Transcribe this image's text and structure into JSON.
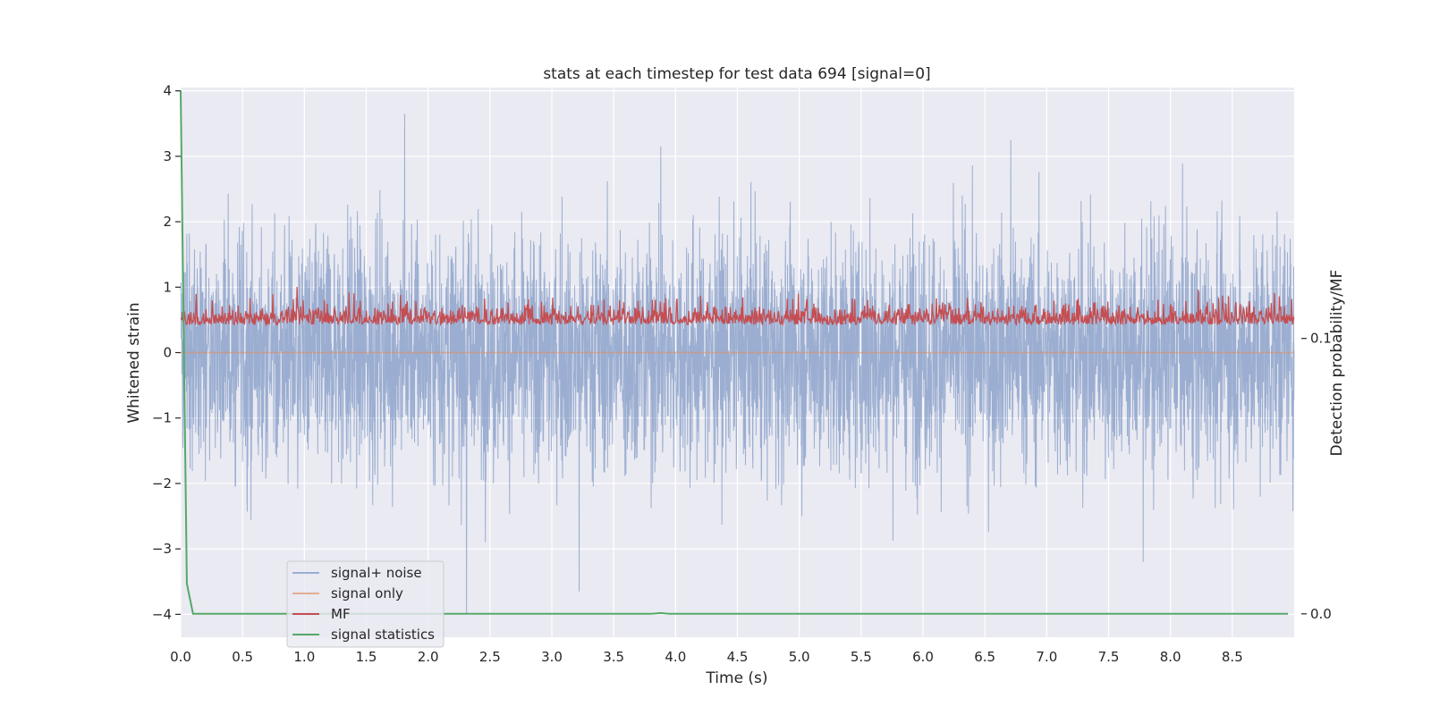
{
  "chart_data": {
    "type": "line",
    "title": "stats at each timestep for test data 694 [signal=0]",
    "xlabel": "Time (s)",
    "ylabel": "Whitened strain",
    "y2label": "Detection probability/MF",
    "xlim": [
      0,
      9.0
    ],
    "ylim": [
      -4.35,
      4.05
    ],
    "y2lim": [
      -0.0085,
      0.1911
    ],
    "x_ticks": [
      0.0,
      0.5,
      1.0,
      1.5,
      2.0,
      2.5,
      3.0,
      3.5,
      4.0,
      4.5,
      5.0,
      5.5,
      6.0,
      6.5,
      7.0,
      7.5,
      8.0,
      8.5
    ],
    "x_tick_labels": [
      "0.0",
      "0.5",
      "1.0",
      "1.5",
      "2.0",
      "2.5",
      "3.0",
      "3.5",
      "4.0",
      "4.5",
      "5.0",
      "5.5",
      "6.0",
      "6.5",
      "7.0",
      "7.5",
      "8.0",
      "8.5"
    ],
    "y_ticks": [
      4,
      3,
      2,
      1,
      0,
      -1,
      -2,
      -3,
      -4
    ],
    "y_tick_labels": [
      "4",
      "3",
      "2",
      "1",
      "0",
      "−1",
      "−2",
      "−3",
      "−4"
    ],
    "y2_ticks": [
      0.1,
      0.0
    ],
    "y2_tick_labels": [
      "0.1",
      "0.0"
    ],
    "grid": true,
    "legend_position": "lower-left",
    "series": [
      {
        "name": "signal+ noise",
        "color": "#4c72b0",
        "axis": "left",
        "description_stats": {
          "mean": 0.0,
          "typical_abs_max": 2.5,
          "max": 3.7,
          "min": -4.0
        },
        "peaks": [
          {
            "x": 1.81,
            "y": 3.65
          },
          {
            "x": 3.88,
            "y": 3.15
          },
          {
            "x": 6.71,
            "y": 3.25
          },
          {
            "x": 2.31,
            "y": -4.0
          },
          {
            "x": 3.22,
            "y": -3.65
          },
          {
            "x": 7.78,
            "y": -3.2
          }
        ]
      },
      {
        "name": "signal only",
        "color": "#dd8452",
        "axis": "left",
        "values_constant": 0.0
      },
      {
        "name": "MF",
        "color": "#c44e52",
        "axis": "right",
        "description_stats": {
          "mean": 0.108,
          "max": 0.123,
          "min": 0.1
        }
      },
      {
        "name": "signal statistics",
        "color": "#55a868",
        "axis": "right",
        "x": [
          0.0,
          0.05,
          0.1,
          0.15,
          3.8,
          3.88,
          3.95,
          8.95
        ],
        "y": [
          0.19,
          0.011,
          0.0,
          0.0,
          0.0,
          0.0003,
          0.0,
          0.0
        ]
      }
    ]
  }
}
